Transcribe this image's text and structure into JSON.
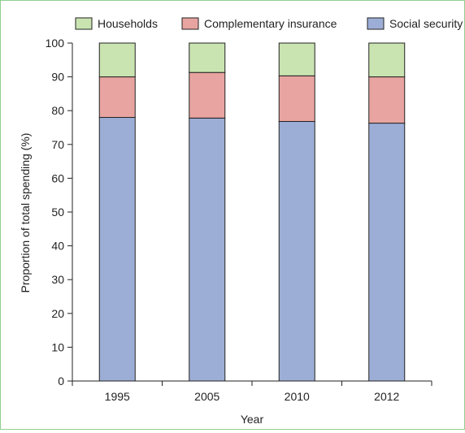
{
  "chart_data": {
    "type": "bar",
    "stacked": true,
    "categories": [
      "1995",
      "2005",
      "2010",
      "2012"
    ],
    "series": [
      {
        "name": "Social security",
        "values": [
          78.0,
          77.8,
          76.8,
          76.3
        ],
        "color": "#9daed6"
      },
      {
        "name": "Complementary insurance",
        "values": [
          12.0,
          13.5,
          13.5,
          13.7
        ],
        "color": "#e8a4a0"
      },
      {
        "name": "Households",
        "values": [
          10.0,
          8.7,
          9.7,
          10.0
        ],
        "color": "#c9e4b0"
      }
    ],
    "legend_order": [
      "Households",
      "Complementary insurance",
      "Social security"
    ],
    "xlabel": "Year",
    "ylabel": "Proportion of total spending (%)",
    "ylim": [
      0,
      100
    ],
    "yticks": [
      "0",
      "10",
      "20",
      "30",
      "40",
      "50",
      "60",
      "70",
      "80",
      "90",
      "100"
    ],
    "grid": false,
    "legend_position": "top"
  }
}
